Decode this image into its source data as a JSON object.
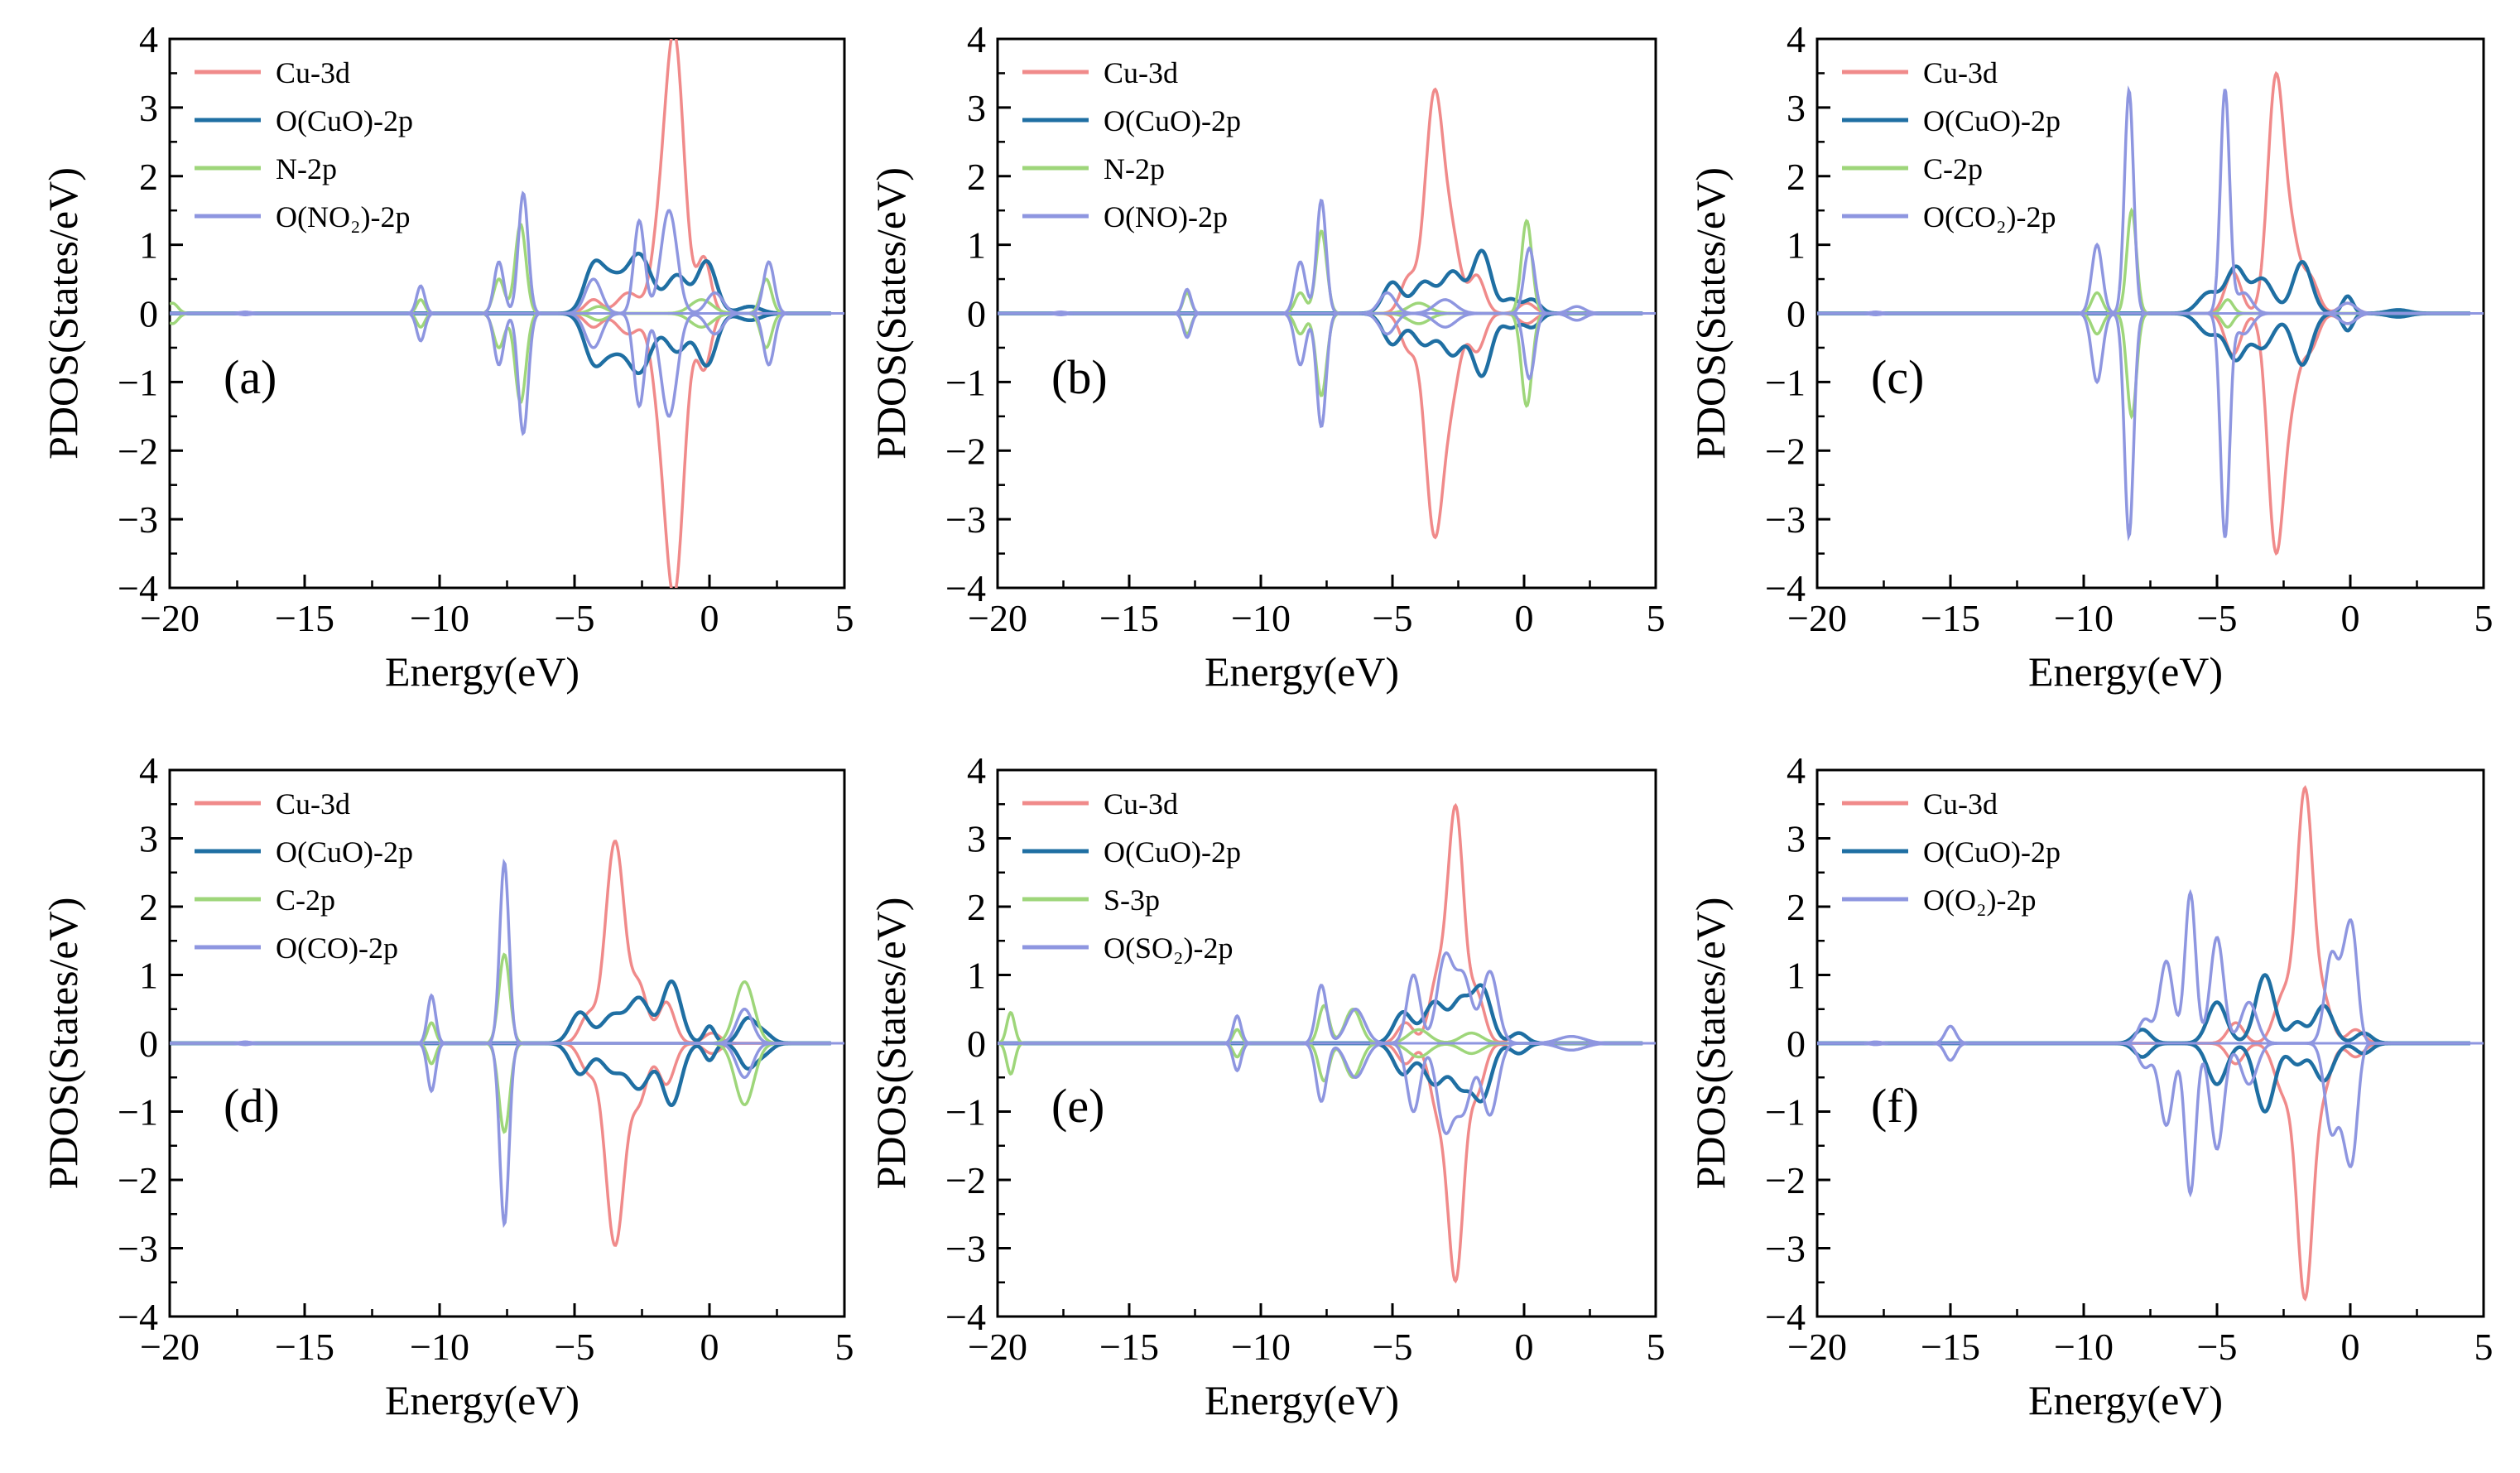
{
  "colors": {
    "cu3d": "#f08a8a",
    "ocuo": "#1f6fa3",
    "xp": "#9ed67a",
    "oads": "#8e96e0"
  },
  "chart_data": [
    {
      "type": "line",
      "panel_label": "(a)",
      "xlabel": "Energy(eV)",
      "ylabel": "PDOS(States/eV)",
      "xlim": [
        -20,
        5
      ],
      "ylim": [
        -4,
        4
      ],
      "xticks": [
        "−20",
        "−15",
        "−10",
        "−5",
        "0",
        "5"
      ],
      "yticks": [
        "−4",
        "−3",
        "−2",
        "−1",
        "0",
        "1",
        "2",
        "3",
        "4"
      ],
      "legend": "top-left",
      "series": [
        {
          "name": "Cu-3d",
          "color_key": "cu3d",
          "peaks": [
            [
              -1.3,
              4.0,
              0.35
            ],
            [
              -1.9,
              0.8,
              0.3
            ],
            [
              -0.2,
              0.8,
              0.25
            ],
            [
              -3.0,
              0.3,
              0.4
            ],
            [
              -4.3,
              0.2,
              0.3
            ]
          ]
        },
        {
          "name": "O(CuO)-2p",
          "color_key": "ocuo",
          "peaks": [
            [
              -4.3,
              0.65,
              0.35
            ],
            [
              -3.6,
              0.45,
              0.4
            ],
            [
              -2.6,
              0.85,
              0.45
            ],
            [
              -1.2,
              0.55,
              0.4
            ],
            [
              -0.1,
              0.75,
              0.35
            ],
            [
              1.5,
              0.1,
              0.4
            ]
          ]
        },
        {
          "name": "N-2p",
          "color_key": "xp",
          "peaks": [
            [
              -19.9,
              0.15,
              0.2
            ],
            [
              -10.7,
              0.2,
              0.15
            ],
            [
              -7.8,
              0.5,
              0.2
            ],
            [
              -7.0,
              1.3,
              0.2
            ],
            [
              -4.1,
              0.1,
              0.3
            ],
            [
              -0.3,
              0.2,
              0.4
            ],
            [
              2.1,
              0.5,
              0.2
            ]
          ]
        },
        {
          "name": "O(NO₂)-2p",
          "color_key": "oads",
          "peaks": [
            [
              -17.2,
              0.02,
              0.2
            ],
            [
              -10.7,
              0.4,
              0.15
            ],
            [
              -7.8,
              0.75,
              0.18
            ],
            [
              -6.9,
              1.75,
              0.18
            ],
            [
              -4.3,
              0.5,
              0.3
            ],
            [
              -2.6,
              1.35,
              0.2
            ],
            [
              -1.5,
              1.5,
              0.3
            ],
            [
              0.2,
              0.3,
              0.3
            ],
            [
              2.2,
              0.75,
              0.2
            ]
          ]
        }
      ]
    },
    {
      "type": "line",
      "panel_label": "(b)",
      "xlabel": "Energy(eV)",
      "ylabel": "PDOS(States/eV)",
      "xlim": [
        -20,
        5
      ],
      "ylim": [
        -4,
        4
      ],
      "xticks": [
        "−20",
        "−15",
        "−10",
        "−5",
        "0",
        "5"
      ],
      "yticks": [
        "−4",
        "−3",
        "−2",
        "−1",
        "0",
        "1",
        "2",
        "3",
        "4"
      ],
      "legend": "top-left",
      "series": [
        {
          "name": "Cu-3d",
          "color_key": "cu3d",
          "peaks": [
            [
              -3.4,
              3.2,
              0.35
            ],
            [
              -2.7,
              0.9,
              0.3
            ],
            [
              -4.4,
              0.5,
              0.3
            ],
            [
              -1.8,
              0.55,
              0.3
            ],
            [
              0.1,
              0.15,
              0.3
            ]
          ]
        },
        {
          "name": "O(CuO)-2p",
          "color_key": "ocuo",
          "peaks": [
            [
              -5.0,
              0.45,
              0.35
            ],
            [
              -3.8,
              0.45,
              0.4
            ],
            [
              -2.7,
              0.6,
              0.4
            ],
            [
              -1.6,
              0.9,
              0.35
            ],
            [
              -0.5,
              0.2,
              0.3
            ],
            [
              0.3,
              0.2,
              0.3
            ]
          ]
        },
        {
          "name": "N-2p",
          "color_key": "xp",
          "peaks": [
            [
              -12.8,
              0.3,
              0.15
            ],
            [
              -8.5,
              0.3,
              0.2
            ],
            [
              -7.7,
              1.2,
              0.2
            ],
            [
              0.1,
              1.35,
              0.2
            ],
            [
              -4.0,
              0.15,
              0.4
            ]
          ]
        },
        {
          "name": "O(NO)-2p",
          "color_key": "oads",
          "peaks": [
            [
              -17.6,
              0.02,
              0.2
            ],
            [
              -12.8,
              0.35,
              0.15
            ],
            [
              -8.5,
              0.75,
              0.2
            ],
            [
              -7.7,
              1.65,
              0.18
            ],
            [
              -5.2,
              0.3,
              0.3
            ],
            [
              -3.0,
              0.2,
              0.4
            ],
            [
              0.2,
              0.95,
              0.2
            ],
            [
              2.0,
              0.1,
              0.3
            ]
          ]
        }
      ]
    },
    {
      "type": "line",
      "panel_label": "(c)",
      "xlabel": "Energy(eV)",
      "ylabel": "PDOS(States/eV)",
      "xlim": [
        -20,
        5
      ],
      "ylim": [
        -4,
        4
      ],
      "xticks": [
        "−20",
        "−15",
        "−10",
        "−5",
        "0",
        "5"
      ],
      "yticks": [
        "−4",
        "−3",
        "−2",
        "−1",
        "0",
        "1",
        "2",
        "3",
        "4"
      ],
      "legend": "top-left",
      "series": [
        {
          "name": "Cu-3d",
          "color_key": "cu3d",
          "peaks": [
            [
              -2.8,
              3.35,
              0.3
            ],
            [
              -2.2,
              1.0,
              0.3
            ],
            [
              -4.4,
              0.6,
              0.3
            ],
            [
              -1.5,
              0.5,
              0.3
            ],
            [
              -0.1,
              0.15,
              0.3
            ]
          ]
        },
        {
          "name": "O(CuO)-2p",
          "color_key": "ocuo",
          "peaks": [
            [
              -5.3,
              0.3,
              0.4
            ],
            [
              -4.3,
              0.65,
              0.35
            ],
            [
              -3.3,
              0.5,
              0.4
            ],
            [
              -1.8,
              0.75,
              0.35
            ],
            [
              -0.1,
              0.25,
              0.2
            ],
            [
              1.8,
              0.05,
              0.4
            ]
          ]
        },
        {
          "name": "C-2p",
          "color_key": "xp",
          "peaks": [
            [
              -9.5,
              0.3,
              0.2
            ],
            [
              -8.2,
              1.5,
              0.18
            ],
            [
              -4.6,
              0.2,
              0.2
            ]
          ]
        },
        {
          "name": "O(CO₂)-2p",
          "color_key": "oads",
          "peaks": [
            [
              -17.8,
              0.02,
              0.2
            ],
            [
              -9.5,
              1.0,
              0.2
            ],
            [
              -8.3,
              3.25,
              0.17
            ],
            [
              -4.7,
              3.25,
              0.17
            ],
            [
              -4.0,
              0.3,
              0.3
            ],
            [
              -0.1,
              0.15,
              0.3
            ]
          ]
        }
      ]
    },
    {
      "type": "line",
      "panel_label": "(d)",
      "xlabel": "Energy(eV)",
      "ylabel": "PDOS(States/eV)",
      "xlim": [
        -20,
        5
      ],
      "ylim": [
        -4,
        4
      ],
      "xticks": [
        "−20",
        "−15",
        "−10",
        "−5",
        "0",
        "5"
      ],
      "yticks": [
        "−4",
        "−3",
        "−2",
        "−1",
        "0",
        "1",
        "2",
        "3",
        "4"
      ],
      "legend": "top-left",
      "series": [
        {
          "name": "Cu-3d",
          "color_key": "cu3d",
          "peaks": [
            [
              -3.5,
              2.95,
              0.35
            ],
            [
              -2.6,
              0.8,
              0.3
            ],
            [
              -4.5,
              0.4,
              0.3
            ],
            [
              -1.6,
              0.6,
              0.3
            ],
            [
              0.1,
              0.15,
              0.3
            ]
          ]
        },
        {
          "name": "O(CuO)-2p",
          "color_key": "ocuo",
          "peaks": [
            [
              -4.8,
              0.45,
              0.35
            ],
            [
              -3.6,
              0.4,
              0.4
            ],
            [
              -2.6,
              0.65,
              0.4
            ],
            [
              -1.4,
              0.9,
              0.35
            ],
            [
              0.0,
              0.25,
              0.2
            ],
            [
              1.4,
              0.35,
              0.3
            ],
            [
              2.0,
              0.15,
              0.3
            ]
          ]
        },
        {
          "name": "C-2p",
          "color_key": "xp",
          "peaks": [
            [
              -10.3,
              0.3,
              0.15
            ],
            [
              -7.6,
              1.3,
              0.2
            ],
            [
              1.3,
              0.9,
              0.35
            ]
          ]
        },
        {
          "name": "O(CO)-2p",
          "color_key": "oads",
          "peaks": [
            [
              -17.2,
              0.02,
              0.2
            ],
            [
              -10.3,
              0.7,
              0.15
            ],
            [
              -7.6,
              2.65,
              0.17
            ],
            [
              1.3,
              0.5,
              0.3
            ]
          ]
        }
      ]
    },
    {
      "type": "line",
      "panel_label": "(e)",
      "xlabel": "Energy(eV)",
      "ylabel": "PDOS(States/eV)",
      "xlim": [
        -20,
        5
      ],
      "ylim": [
        -4,
        4
      ],
      "xticks": [
        "−20",
        "−15",
        "−10",
        "−5",
        "0",
        "5"
      ],
      "yticks": [
        "−4",
        "−3",
        "−2",
        "−1",
        "0",
        "1",
        "2",
        "3",
        "4"
      ],
      "legend": "top-left",
      "series": [
        {
          "name": "Cu-3d",
          "color_key": "cu3d",
          "peaks": [
            [
              -2.6,
              3.4,
              0.3
            ],
            [
              -3.3,
              0.9,
              0.3
            ],
            [
              -1.8,
              0.7,
              0.3
            ],
            [
              -4.5,
              0.3,
              0.3
            ],
            [
              -0.2,
              0.15,
              0.3
            ]
          ]
        },
        {
          "name": "O(CuO)-2p",
          "color_key": "ocuo",
          "peaks": [
            [
              -4.6,
              0.45,
              0.35
            ],
            [
              -3.4,
              0.6,
              0.4
            ],
            [
              -2.4,
              0.6,
              0.35
            ],
            [
              -1.6,
              0.8,
              0.35
            ],
            [
              -0.2,
              0.15,
              0.3
            ]
          ]
        },
        {
          "name": "S-3p",
          "color_key": "xp",
          "peaks": [
            [
              -19.5,
              0.45,
              0.15
            ],
            [
              -10.9,
              0.2,
              0.15
            ],
            [
              -7.6,
              0.55,
              0.2
            ],
            [
              -6.5,
              0.5,
              0.3
            ],
            [
              -4.0,
              0.2,
              0.4
            ],
            [
              -2.0,
              0.15,
              0.4
            ]
          ]
        },
        {
          "name": "O(SO₂)-2p",
          "color_key": "oads",
          "peaks": [
            [
              -10.9,
              0.4,
              0.15
            ],
            [
              -7.7,
              0.85,
              0.2
            ],
            [
              -6.4,
              0.5,
              0.35
            ],
            [
              -4.2,
              1.0,
              0.25
            ],
            [
              -3.0,
              1.25,
              0.3
            ],
            [
              -2.3,
              0.95,
              0.3
            ],
            [
              -1.3,
              1.05,
              0.3
            ],
            [
              1.8,
              0.1,
              0.5
            ]
          ]
        }
      ]
    },
    {
      "type": "line",
      "panel_label": "(f)",
      "xlabel": "Energy(eV)",
      "ylabel": "PDOS(States/eV)",
      "xlim": [
        -20,
        5
      ],
      "ylim": [
        -4,
        4
      ],
      "xticks": [
        "−20",
        "−15",
        "−10",
        "−5",
        "0",
        "5"
      ],
      "yticks": [
        "−4",
        "−3",
        "−2",
        "−1",
        "0",
        "1",
        "2",
        "3",
        "4"
      ],
      "legend": "top-left",
      "series": [
        {
          "name": "Cu-3d",
          "color_key": "cu3d",
          "peaks": [
            [
              -1.7,
              3.65,
              0.3
            ],
            [
              -2.5,
              0.7,
              0.35
            ],
            [
              -1.0,
              0.6,
              0.3
            ],
            [
              -4.3,
              0.3,
              0.3
            ],
            [
              0.2,
              0.2,
              0.3
            ]
          ]
        },
        {
          "name": "O(CuO)-2p",
          "color_key": "ocuo",
          "peaks": [
            [
              -7.8,
              0.2,
              0.3
            ],
            [
              -5.0,
              0.6,
              0.35
            ],
            [
              -3.2,
              1.0,
              0.35
            ],
            [
              -1.0,
              0.55,
              0.35
            ],
            [
              -2.0,
              0.3,
              0.3
            ],
            [
              0.5,
              0.15,
              0.3
            ]
          ]
        },
        {
          "name": "O(O₂)-2p",
          "color_key": "oads",
          "peaks": [
            [
              -17.8,
              0.02,
              0.2
            ],
            [
              -15.0,
              0.25,
              0.2
            ],
            [
              -7.7,
              0.35,
              0.25
            ],
            [
              -6.9,
              1.2,
              0.25
            ],
            [
              -6.0,
              2.2,
              0.2
            ],
            [
              -5.0,
              1.55,
              0.25
            ],
            [
              -3.8,
              0.6,
              0.3
            ],
            [
              -0.7,
              1.3,
              0.25
            ],
            [
              0.1,
              1.4,
              0.2
            ],
            [
              -0.2,
              0.9,
              0.2
            ]
          ]
        }
      ]
    }
  ]
}
